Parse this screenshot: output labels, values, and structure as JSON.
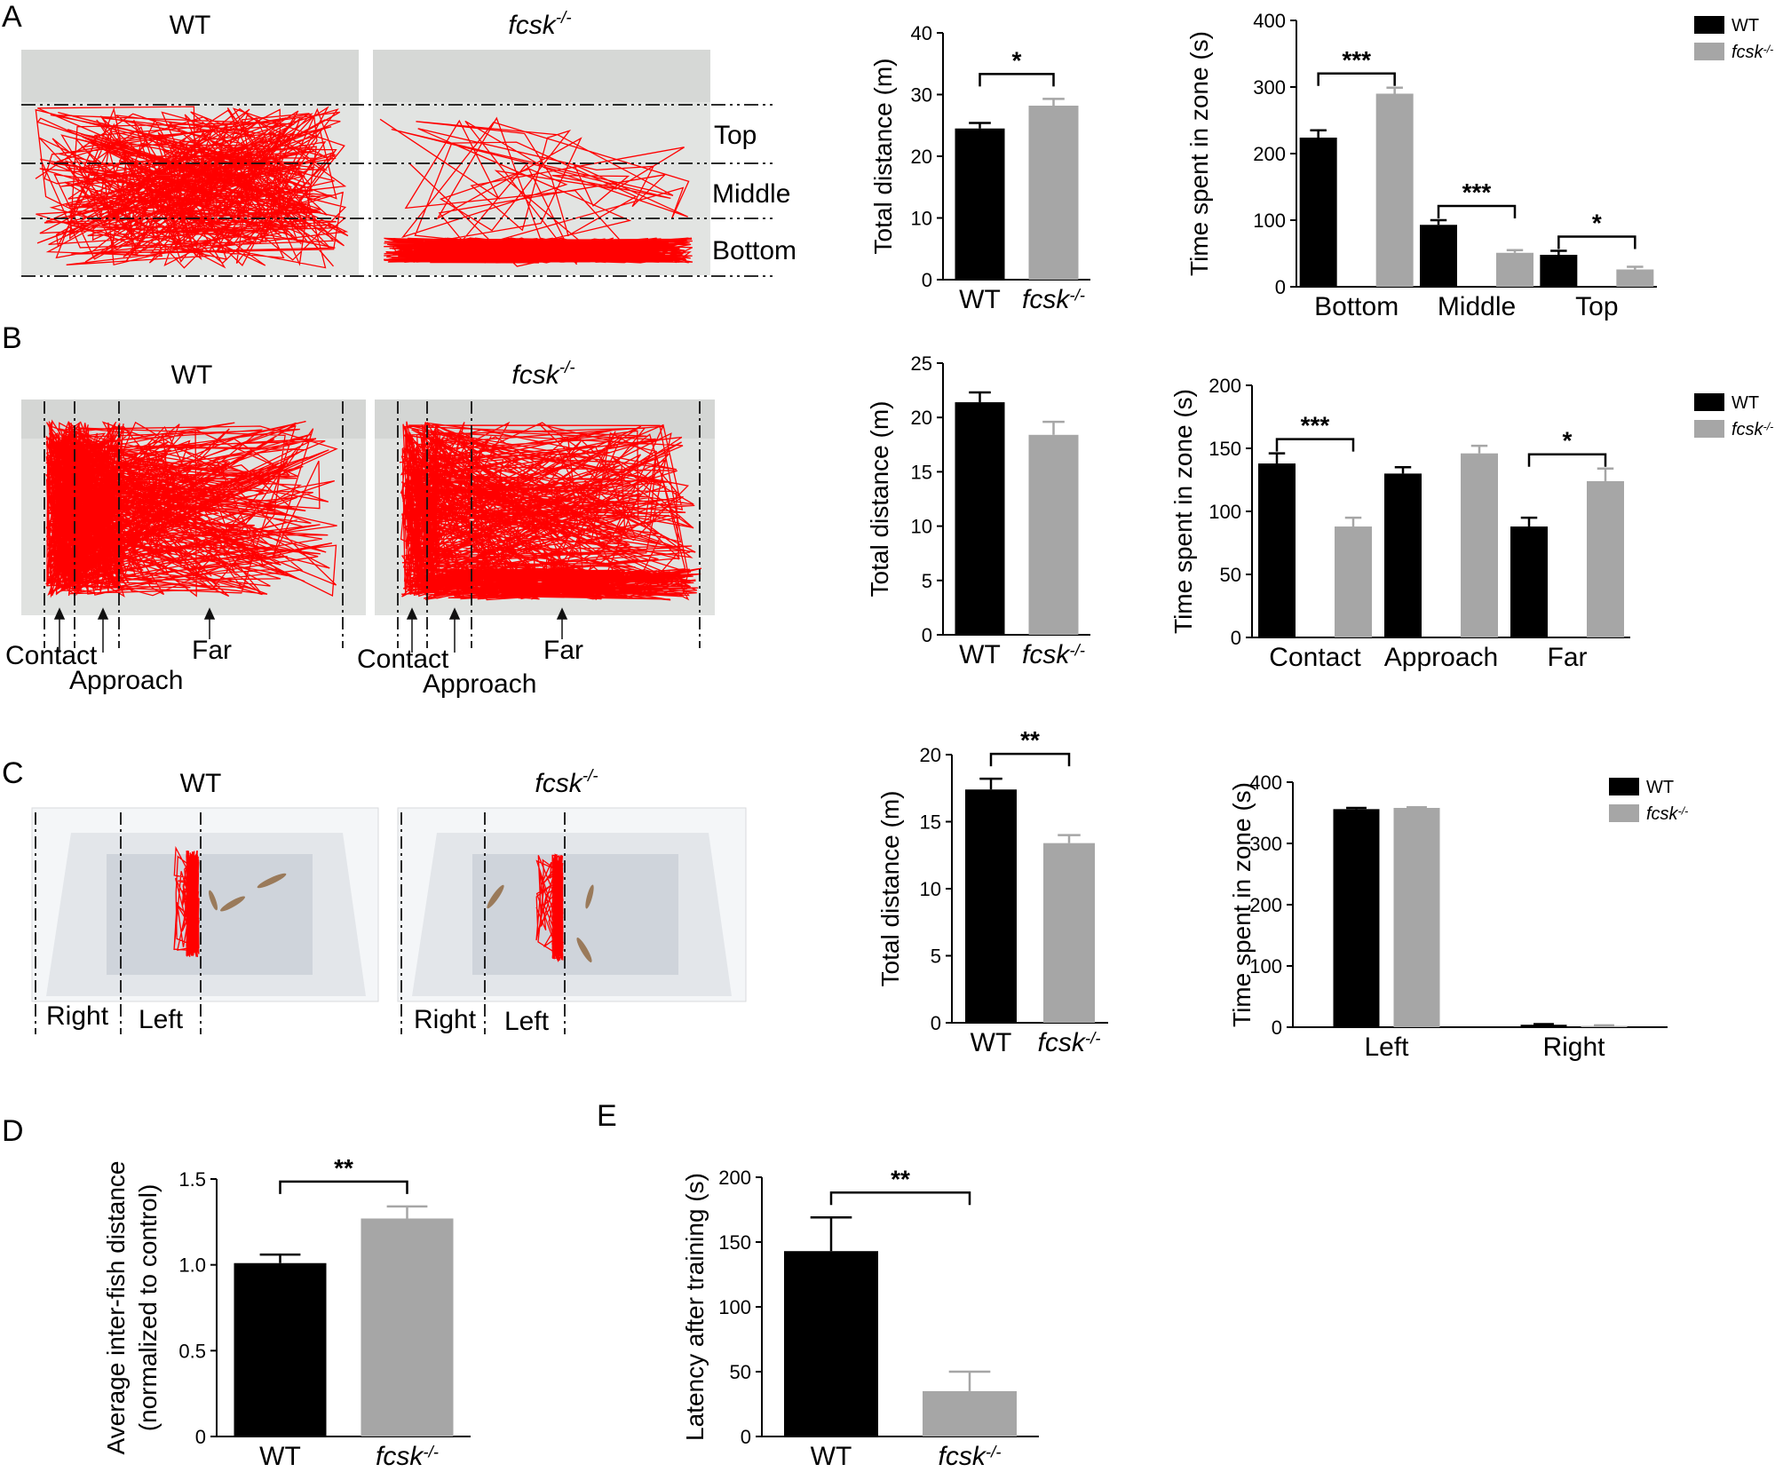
{
  "panel_labels": [
    "A",
    "B",
    "C",
    "D",
    "E"
  ],
  "track_labels": {
    "wt": "WT",
    "ko": "fcsk",
    "ko_sup": "-/-",
    "a_zones": [
      "Top",
      "Middle",
      "Bottom"
    ],
    "b_zones": [
      "Contact",
      "Approach",
      "Far"
    ],
    "c_zones": [
      "Right",
      "Left"
    ]
  },
  "colors": {
    "wt": "#000000",
    "ko": "#a6a6a6",
    "track": "#ff0000",
    "tank_wall": "#c8cac8",
    "tank_water": "#dfe1df",
    "tray": "#f2f4f6",
    "tray_water": "#d9dde3"
  },
  "legend": {
    "wt": "WT",
    "ko": "fcsk",
    "ko_sup": "-/-"
  },
  "chart_data": [
    {
      "id": "A-distance",
      "type": "bar",
      "categories": [
        "WT",
        "fcsk-/-"
      ],
      "values": [
        24.5,
        28.2
      ],
      "errors": [
        0.9,
        1.1
      ],
      "ylabel": "Total distance (m)",
      "ylim": [
        0,
        40
      ],
      "yticks": [
        0,
        10,
        20,
        30,
        40
      ],
      "significance": [
        {
          "pair": [
            0,
            1
          ],
          "label": "*"
        }
      ],
      "legend": "none"
    },
    {
      "id": "A-zone",
      "type": "bar",
      "categories": [
        "Bottom",
        "Middle",
        "Top"
      ],
      "series": [
        {
          "name": "WT",
          "values": [
            224,
            93,
            48
          ],
          "errors": [
            11,
            7,
            6
          ]
        },
        {
          "name": "fcsk-/-",
          "values": [
            290,
            51,
            26
          ],
          "errors": [
            9,
            4,
            4
          ]
        }
      ],
      "ylabel": "Time spent in zone (s)",
      "ylim": [
        0,
        400
      ],
      "yticks": [
        0,
        100,
        200,
        300,
        400
      ],
      "significance": [
        {
          "category": 0,
          "label": "***"
        },
        {
          "category": 1,
          "label": "***"
        },
        {
          "category": 2,
          "label": "*"
        }
      ],
      "legend": "top-right"
    },
    {
      "id": "B-distance",
      "type": "bar",
      "categories": [
        "WT",
        "fcsk-/-"
      ],
      "values": [
        21.4,
        18.4
      ],
      "errors": [
        0.9,
        1.2
      ],
      "ylabel": "Total distance (m)",
      "ylim": [
        0,
        25
      ],
      "yticks": [
        0,
        5,
        10,
        15,
        20,
        25
      ],
      "significance": [],
      "legend": "none"
    },
    {
      "id": "B-zone",
      "type": "bar",
      "categories": [
        "Contact",
        "Approach",
        "Far"
      ],
      "series": [
        {
          "name": "WT",
          "values": [
            138,
            130,
            88
          ],
          "errors": [
            8,
            5,
            7
          ]
        },
        {
          "name": "fcsk-/-",
          "values": [
            88,
            146,
            124
          ],
          "errors": [
            7,
            6,
            10
          ]
        }
      ],
      "ylabel": "Time spent in zone (s)",
      "ylim": [
        0,
        200
      ],
      "yticks": [
        0,
        50,
        100,
        150,
        200
      ],
      "significance": [
        {
          "category": 0,
          "label": "***"
        },
        {
          "category": 2,
          "label": "*"
        }
      ],
      "legend": "top-right"
    },
    {
      "id": "C-distance",
      "type": "bar",
      "categories": [
        "WT",
        "fcsk-/-"
      ],
      "values": [
        17.4,
        13.4
      ],
      "errors": [
        0.8,
        0.6
      ],
      "ylabel": "Total distance (m)",
      "ylim": [
        0,
        20
      ],
      "yticks": [
        0,
        5,
        10,
        15,
        20
      ],
      "significance": [
        {
          "pair": [
            0,
            1
          ],
          "label": "**"
        }
      ],
      "legend": "none"
    },
    {
      "id": "C-zone",
      "type": "bar",
      "categories": [
        "Left",
        "Right"
      ],
      "series": [
        {
          "name": "WT",
          "values": [
            356,
            4
          ],
          "errors": [
            2,
            1
          ]
        },
        {
          "name": "fcsk-/-",
          "values": [
            358,
            2
          ],
          "errors": [
            1,
            1
          ]
        }
      ],
      "ylabel": "Time spent in zone (s)",
      "ylim": [
        0,
        400
      ],
      "yticks": [
        0,
        100,
        200,
        300,
        400
      ],
      "significance": [],
      "legend": "top-right"
    },
    {
      "id": "D",
      "type": "bar",
      "categories": [
        "WT",
        "fcsk-/-"
      ],
      "values": [
        1.01,
        1.27
      ],
      "errors": [
        0.05,
        0.07
      ],
      "ylabel": "Average inter-fish distance",
      "ylabel2": "(normalized to control)",
      "ylim": [
        0,
        1.5
      ],
      "yticks": [
        "0",
        "0.5",
        "1.0",
        "1.5"
      ],
      "significance": [
        {
          "pair": [
            0,
            1
          ],
          "label": "**"
        }
      ],
      "legend": "none"
    },
    {
      "id": "E",
      "type": "bar",
      "categories": [
        "WT",
        "fcsk-/-"
      ],
      "values": [
        143,
        35
      ],
      "errors": [
        26,
        15
      ],
      "ylabel": "Latency after training (s)",
      "ylim": [
        0,
        200
      ],
      "yticks": [
        0,
        50,
        100,
        150,
        200
      ],
      "significance": [
        {
          "pair": [
            0,
            1
          ],
          "label": "**"
        }
      ],
      "legend": "none"
    }
  ]
}
